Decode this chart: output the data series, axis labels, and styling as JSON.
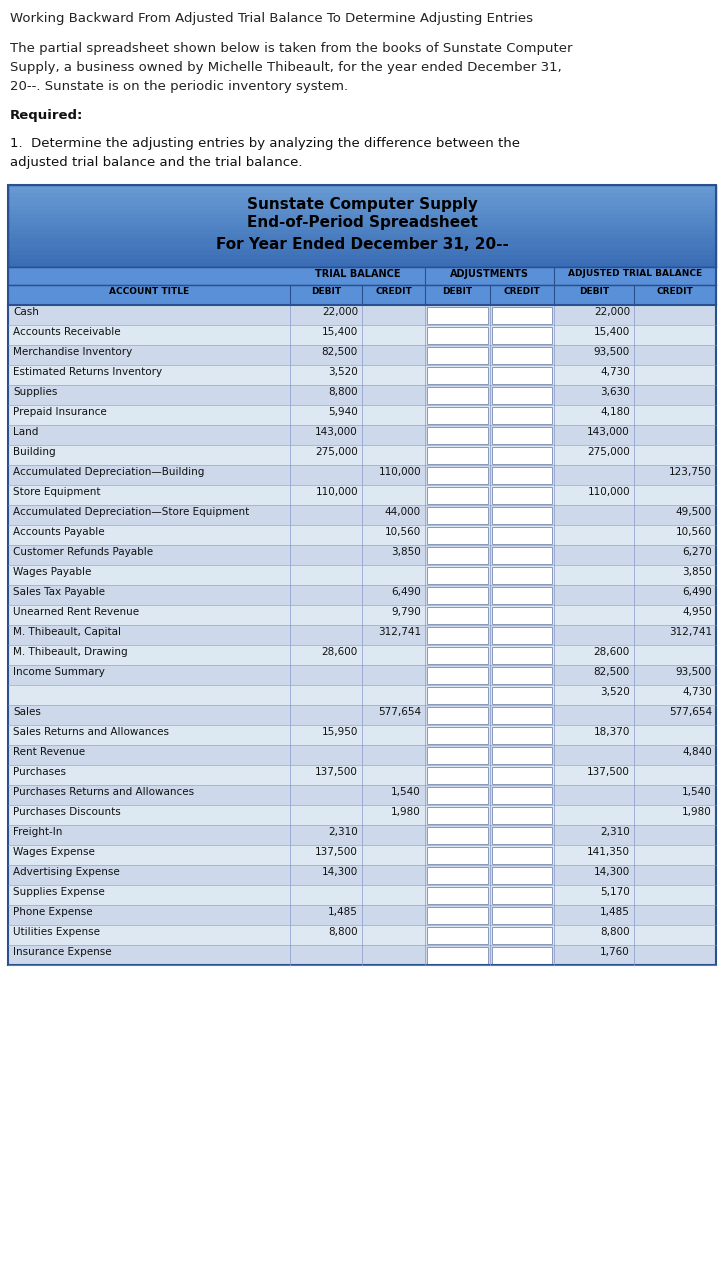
{
  "title_text": "Working Backward From Adjusted Trial Balance To Determine Adjusting Entries",
  "intro_lines": [
    "The partial spreadsheet shown below is taken from the books of Sunstate Computer",
    "Supply, a business owned by Michelle Thibeault, for the year ended December 31,",
    "20--. Sunstate is on the periodic inventory system."
  ],
  "required_text": "Required:",
  "item1_lines": [
    "1.  Determine the adjusting entries by analyzing the difference between the",
    "adjusted trial balance and the trial balance."
  ],
  "table_title1": "Sunstate Computer Supply",
  "table_title2": "End-of-Period Spreadsheet",
  "table_title3": "For Year Ended December 31, 20--",
  "rows": [
    {
      "account": "Cash",
      "tb_d": "22,000",
      "tb_c": "",
      "atb_d": "22,000",
      "atb_c": ""
    },
    {
      "account": "Accounts Receivable",
      "tb_d": "15,400",
      "tb_c": "",
      "atb_d": "15,400",
      "atb_c": ""
    },
    {
      "account": "Merchandise Inventory",
      "tb_d": "82,500",
      "tb_c": "",
      "atb_d": "93,500",
      "atb_c": ""
    },
    {
      "account": "Estimated Returns Inventory",
      "tb_d": "3,520",
      "tb_c": "",
      "atb_d": "4,730",
      "atb_c": ""
    },
    {
      "account": "Supplies",
      "tb_d": "8,800",
      "tb_c": "",
      "atb_d": "3,630",
      "atb_c": ""
    },
    {
      "account": "Prepaid Insurance",
      "tb_d": "5,940",
      "tb_c": "",
      "atb_d": "4,180",
      "atb_c": ""
    },
    {
      "account": "Land",
      "tb_d": "143,000",
      "tb_c": "",
      "atb_d": "143,000",
      "atb_c": ""
    },
    {
      "account": "Building",
      "tb_d": "275,000",
      "tb_c": "",
      "atb_d": "275,000",
      "atb_c": ""
    },
    {
      "account": "Accumulated Depreciation—Building",
      "tb_d": "",
      "tb_c": "110,000",
      "atb_d": "",
      "atb_c": "123,750"
    },
    {
      "account": "Store Equipment",
      "tb_d": "110,000",
      "tb_c": "",
      "atb_d": "110,000",
      "atb_c": ""
    },
    {
      "account": "Accumulated Depreciation—Store Equipment",
      "tb_d": "",
      "tb_c": "44,000",
      "atb_d": "",
      "atb_c": "49,500"
    },
    {
      "account": "Accounts Payable",
      "tb_d": "",
      "tb_c": "10,560",
      "atb_d": "",
      "atb_c": "10,560"
    },
    {
      "account": "Customer Refunds Payable",
      "tb_d": "",
      "tb_c": "3,850",
      "atb_d": "",
      "atb_c": "6,270"
    },
    {
      "account": "Wages Payable",
      "tb_d": "",
      "tb_c": "",
      "atb_d": "",
      "atb_c": "3,850"
    },
    {
      "account": "Sales Tax Payable",
      "tb_d": "",
      "tb_c": "6,490",
      "atb_d": "",
      "atb_c": "6,490"
    },
    {
      "account": "Unearned Rent Revenue",
      "tb_d": "",
      "tb_c": "9,790",
      "atb_d": "",
      "atb_c": "4,950"
    },
    {
      "account": "M. Thibeault, Capital",
      "tb_d": "",
      "tb_c": "312,741",
      "atb_d": "",
      "atb_c": "312,741"
    },
    {
      "account": "M. Thibeault, Drawing",
      "tb_d": "28,600",
      "tb_c": "",
      "atb_d": "28,600",
      "atb_c": ""
    },
    {
      "account": "Income Summary",
      "tb_d": "",
      "tb_c": "",
      "atb_d": "82,500",
      "atb_c": "93,500"
    },
    {
      "account": "",
      "tb_d": "",
      "tb_c": "",
      "atb_d": "3,520",
      "atb_c": "4,730"
    },
    {
      "account": "Sales",
      "tb_d": "",
      "tb_c": "577,654",
      "atb_d": "",
      "atb_c": "577,654"
    },
    {
      "account": "Sales Returns and Allowances",
      "tb_d": "15,950",
      "tb_c": "",
      "atb_d": "18,370",
      "atb_c": ""
    },
    {
      "account": "Rent Revenue",
      "tb_d": "",
      "tb_c": "",
      "atb_d": "",
      "atb_c": "4,840"
    },
    {
      "account": "Purchases",
      "tb_d": "137,500",
      "tb_c": "",
      "atb_d": "137,500",
      "atb_c": ""
    },
    {
      "account": "Purchases Returns and Allowances",
      "tb_d": "",
      "tb_c": "1,540",
      "atb_d": "",
      "atb_c": "1,540"
    },
    {
      "account": "Purchases Discounts",
      "tb_d": "",
      "tb_c": "1,980",
      "atb_d": "",
      "atb_c": "1,980"
    },
    {
      "account": "Freight-In",
      "tb_d": "2,310",
      "tb_c": "",
      "atb_d": "2,310",
      "atb_c": ""
    },
    {
      "account": "Wages Expense",
      "tb_d": "137,500",
      "tb_c": "",
      "atb_d": "141,350",
      "atb_c": ""
    },
    {
      "account": "Advertising Expense",
      "tb_d": "14,300",
      "tb_c": "",
      "atb_d": "14,300",
      "atb_c": ""
    },
    {
      "account": "Supplies Expense",
      "tb_d": "",
      "tb_c": "",
      "atb_d": "5,170",
      "atb_c": ""
    },
    {
      "account": "Phone Expense",
      "tb_d": "1,485",
      "tb_c": "",
      "atb_d": "1,485",
      "atb_c": ""
    },
    {
      "account": "Utilities Expense",
      "tb_d": "8,800",
      "tb_c": "",
      "atb_d": "8,800",
      "atb_c": ""
    },
    {
      "account": "Insurance Expense",
      "tb_d": "",
      "tb_c": "",
      "atb_d": "1,760",
      "atb_c": ""
    }
  ],
  "header_bg_dark": "#3a6db5",
  "header_bg_medium": "#4a84d4",
  "subheader_bg": "#5a90d8",
  "row_bg_odd": "#cdd9ea",
  "row_bg_even": "#dde8f3",
  "table_border": "#2a5090",
  "inner_line": "#8899cc",
  "cell_fill": "#ffffff",
  "cell_border": "#8899bb",
  "text_dark": "#111111"
}
